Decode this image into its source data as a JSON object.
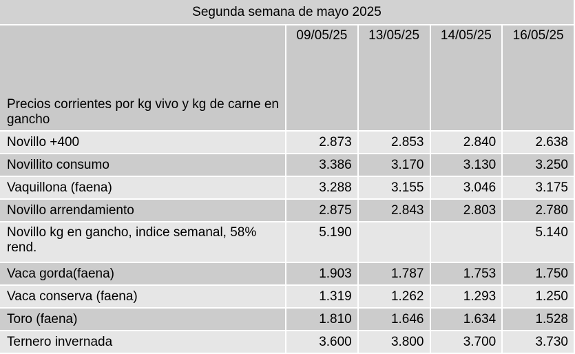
{
  "table": {
    "title": "Segunda semana de mayo 2025",
    "header_label": "Precios corrientes  por kg vivo y kg de carne en gancho",
    "dates": [
      "09/05/25",
      "13/05/25",
      "14/05/25",
      "16/05/25"
    ],
    "rows": [
      {
        "name": "Novillo +400",
        "values": [
          "2.873",
          "2.853",
          "2.840",
          "2.638"
        ]
      },
      {
        "name": "Novillito consumo",
        "values": [
          "3.386",
          "3.170",
          "3.130",
          "3.250"
        ]
      },
      {
        "name": "Vaquillona (faena)",
        "values": [
          "3.288",
          "3.155",
          "3.046",
          "3.175"
        ]
      },
      {
        "name": "Novillo arrendamiento",
        "values": [
          "2.875",
          "2.843",
          "2.803",
          "2.780"
        ]
      },
      {
        "name": "Novillo kg en gancho, indice semanal, 58% rend.",
        "values": [
          "5.190",
          "",
          "",
          "5.140"
        ]
      },
      {
        "name": "Vaca gorda(faena)",
        "values": [
          "1.903",
          "1.787",
          "1.753",
          "1.750"
        ]
      },
      {
        "name": "Vaca conserva (faena)",
        "values": [
          "1.319",
          "1.262",
          "1.293",
          "1.250"
        ]
      },
      {
        "name": "Toro (faena)",
        "values": [
          "1.810",
          "1.646",
          "1.634",
          "1.528"
        ]
      },
      {
        "name": "Ternero invernada",
        "values": [
          "3.600",
          "3.800",
          "3.700",
          "3.730"
        ]
      }
    ]
  }
}
